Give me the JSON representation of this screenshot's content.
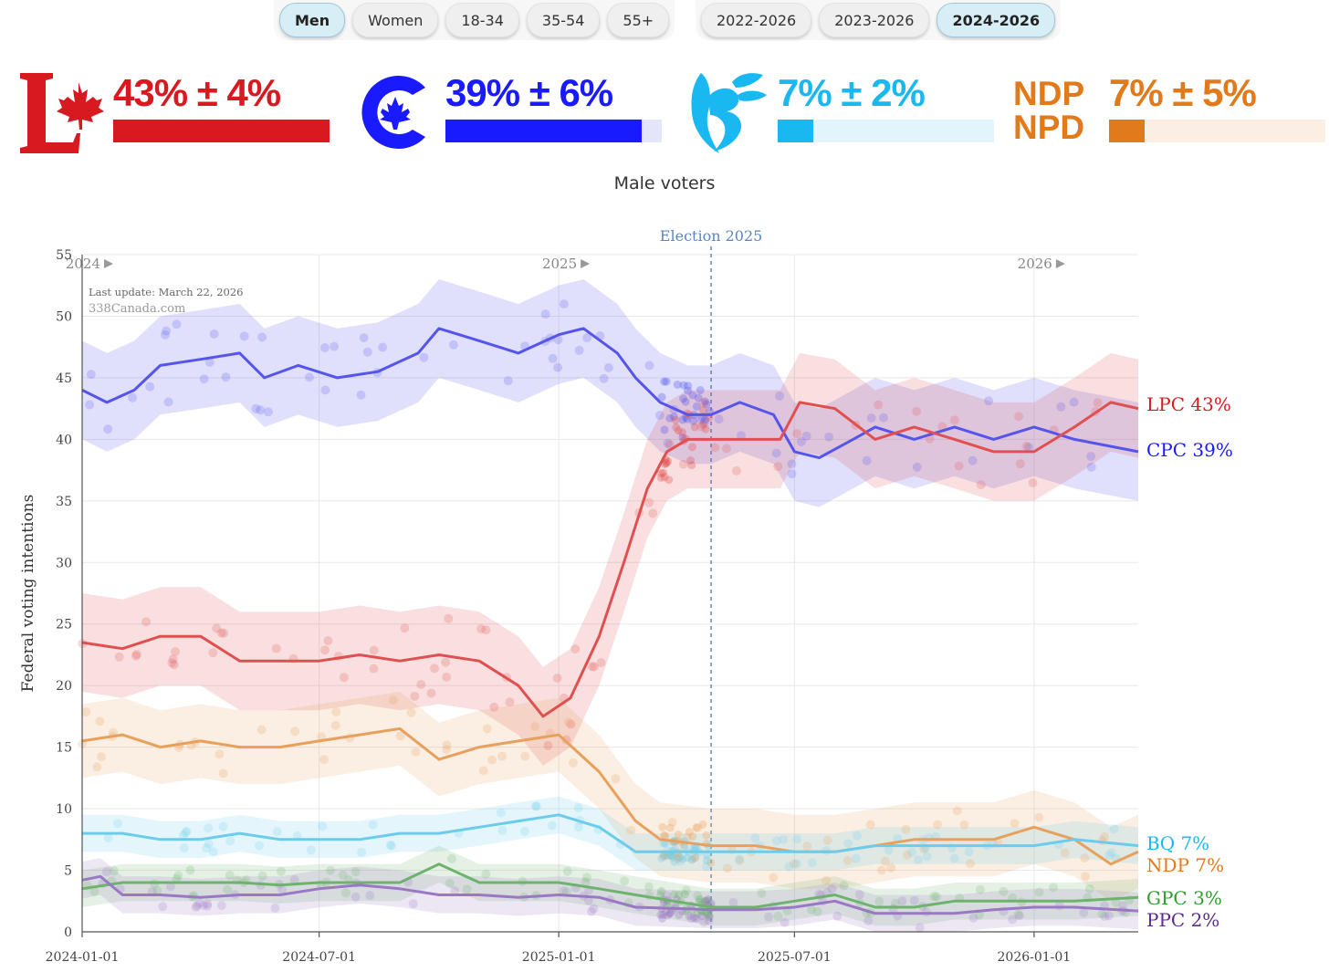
{
  "filters": {
    "demographics": [
      {
        "label": "Men",
        "active": true
      },
      {
        "label": "Women",
        "active": false
      },
      {
        "label": "18-34",
        "active": false
      },
      {
        "label": "35-54",
        "active": false
      },
      {
        "label": "55+",
        "active": false
      }
    ],
    "periods": [
      {
        "label": "2022-2026",
        "active": false
      },
      {
        "label": "2023-2026",
        "active": false
      },
      {
        "label": "2024-2026",
        "active": true
      }
    ]
  },
  "summary": [
    {
      "party": "LPC",
      "logo": "liberal-logo",
      "text": "43% ± 4%",
      "value": 43,
      "moe": 4,
      "color": "#d71920",
      "track": "#fbe3e3"
    },
    {
      "party": "CPC",
      "logo": "conservative-logo",
      "text": "39% ± 6%",
      "value": 39,
      "moe": 6,
      "color": "#1a1aff",
      "track": "#e4e4fb"
    },
    {
      "party": "BQ",
      "logo": "bloc-logo",
      "text": "7% ± 2%",
      "value": 7,
      "moe": 2,
      "color": "#19b8f0",
      "track": "#e3f5fc"
    },
    {
      "party": "NDP",
      "logo": "ndp-logo",
      "logo_text_1": "NDP",
      "logo_text_2": "NPD",
      "text": "7% ± 5%",
      "value": 7,
      "moe": 5,
      "color": "#e17a1b",
      "track": "#fbeee3"
    }
  ],
  "subtitle": "Male voters",
  "chart_data": {
    "type": "line",
    "title": "Male voters",
    "ylabel": "Federal voting intentions",
    "ylim": [
      0,
      55
    ],
    "yticks": [
      0,
      5,
      10,
      15,
      20,
      25,
      30,
      35,
      40,
      45,
      50,
      55
    ],
    "x_range": [
      "2024-01-01",
      "2026-03-22"
    ],
    "xticks": [
      "2024-01-01",
      "2024-07-01",
      "2025-01-01",
      "2025-07-01",
      "2026-01-01"
    ],
    "year_markers": [
      {
        "label": "2024",
        "date": "2024-01-01"
      },
      {
        "label": "2025",
        "date": "2025-01-01"
      },
      {
        "label": "2026",
        "date": "2026-01-01"
      }
    ],
    "annotations": {
      "election_label": "Election 2025",
      "election_date": "2025-04-28",
      "last_update": "Last update: March 22, 2026",
      "source": "338Canada.com"
    },
    "series": [
      {
        "name": "CPC",
        "end_label": "CPC 39%",
        "color": "#5555ee",
        "band": 4,
        "points": [
          [
            "2024-01-01",
            44
          ],
          [
            "2024-01-20",
            43
          ],
          [
            "2024-02-10",
            44
          ],
          [
            "2024-03-01",
            46
          ],
          [
            "2024-04-01",
            46.5
          ],
          [
            "2024-05-01",
            47
          ],
          [
            "2024-05-20",
            45
          ],
          [
            "2024-06-15",
            46
          ],
          [
            "2024-07-15",
            45
          ],
          [
            "2024-08-15",
            45.5
          ],
          [
            "2024-09-15",
            47
          ],
          [
            "2024-10-01",
            49
          ],
          [
            "2024-11-01",
            48
          ],
          [
            "2024-12-01",
            47
          ],
          [
            "2025-01-01",
            48.5
          ],
          [
            "2025-01-20",
            49
          ],
          [
            "2025-02-15",
            47
          ],
          [
            "2025-03-01",
            45
          ],
          [
            "2025-03-20",
            43
          ],
          [
            "2025-04-10",
            42
          ],
          [
            "2025-04-28",
            42
          ],
          [
            "2025-05-20",
            43
          ],
          [
            "2025-06-15",
            42
          ],
          [
            "2025-07-01",
            39
          ],
          [
            "2025-07-20",
            38.5
          ],
          [
            "2025-08-15",
            40
          ],
          [
            "2025-09-01",
            41
          ],
          [
            "2025-10-01",
            40
          ],
          [
            "2025-11-01",
            41
          ],
          [
            "2025-12-01",
            40
          ],
          [
            "2026-01-01",
            41
          ],
          [
            "2026-02-01",
            40
          ],
          [
            "2026-03-22",
            39
          ]
        ]
      },
      {
        "name": "LPC",
        "end_label": "LPC 43%",
        "color": "#e05050",
        "band": 4,
        "points": [
          [
            "2024-01-01",
            23.5
          ],
          [
            "2024-02-01",
            23
          ],
          [
            "2024-03-01",
            24
          ],
          [
            "2024-04-01",
            24
          ],
          [
            "2024-05-01",
            22
          ],
          [
            "2024-06-01",
            22
          ],
          [
            "2024-07-01",
            22
          ],
          [
            "2024-08-01",
            22.5
          ],
          [
            "2024-09-01",
            22
          ],
          [
            "2024-10-01",
            22.5
          ],
          [
            "2024-11-01",
            22
          ],
          [
            "2024-12-01",
            20
          ],
          [
            "2024-12-20",
            17.5
          ],
          [
            "2025-01-10",
            19
          ],
          [
            "2025-02-01",
            24
          ],
          [
            "2025-02-20",
            30
          ],
          [
            "2025-03-10",
            36
          ],
          [
            "2025-03-25",
            39
          ],
          [
            "2025-04-10",
            40
          ],
          [
            "2025-04-28",
            40
          ],
          [
            "2025-06-01",
            40
          ],
          [
            "2025-06-20",
            40
          ],
          [
            "2025-07-05",
            43
          ],
          [
            "2025-08-01",
            42.5
          ],
          [
            "2025-09-01",
            40
          ],
          [
            "2025-10-01",
            41
          ],
          [
            "2025-11-01",
            40
          ],
          [
            "2025-12-01",
            39
          ],
          [
            "2026-01-01",
            39
          ],
          [
            "2026-02-01",
            41
          ],
          [
            "2026-03-01",
            43
          ],
          [
            "2026-03-22",
            42.5
          ]
        ]
      },
      {
        "name": "NDP",
        "end_label": "NDP 7%",
        "color": "#e8a15c",
        "band": 3,
        "points": [
          [
            "2024-01-01",
            15.5
          ],
          [
            "2024-02-01",
            16
          ],
          [
            "2024-03-01",
            15
          ],
          [
            "2024-04-01",
            15.5
          ],
          [
            "2024-05-01",
            15
          ],
          [
            "2024-06-01",
            15
          ],
          [
            "2024-07-01",
            15.5
          ],
          [
            "2024-08-01",
            16
          ],
          [
            "2024-09-01",
            16.5
          ],
          [
            "2024-10-01",
            14
          ],
          [
            "2024-11-01",
            15
          ],
          [
            "2024-12-01",
            15.5
          ],
          [
            "2025-01-01",
            16
          ],
          [
            "2025-02-01",
            13
          ],
          [
            "2025-03-01",
            9
          ],
          [
            "2025-03-20",
            7.5
          ],
          [
            "2025-04-28",
            7
          ],
          [
            "2025-06-01",
            7
          ],
          [
            "2025-07-01",
            6.5
          ],
          [
            "2025-08-01",
            6.5
          ],
          [
            "2025-09-01",
            7
          ],
          [
            "2025-10-01",
            7.5
          ],
          [
            "2025-11-01",
            7.5
          ],
          [
            "2025-12-01",
            7.5
          ],
          [
            "2026-01-01",
            8.5
          ],
          [
            "2026-02-01",
            7.5
          ],
          [
            "2026-03-01",
            5.5
          ],
          [
            "2026-03-22",
            6.5
          ]
        ]
      },
      {
        "name": "BQ",
        "end_label": "BQ 7%",
        "color": "#6cccec",
        "band": 1.5,
        "points": [
          [
            "2024-01-01",
            8
          ],
          [
            "2024-02-01",
            8
          ],
          [
            "2024-03-01",
            7.5
          ],
          [
            "2024-04-01",
            7.5
          ],
          [
            "2024-05-01",
            8
          ],
          [
            "2024-06-01",
            7.5
          ],
          [
            "2024-07-01",
            7.5
          ],
          [
            "2024-08-01",
            7.5
          ],
          [
            "2024-09-01",
            8
          ],
          [
            "2024-10-01",
            8
          ],
          [
            "2024-11-01",
            8.5
          ],
          [
            "2024-12-01",
            9
          ],
          [
            "2025-01-01",
            9.5
          ],
          [
            "2025-02-01",
            8.5
          ],
          [
            "2025-03-01",
            6.5
          ],
          [
            "2025-04-28",
            6.5
          ],
          [
            "2025-06-01",
            6.5
          ],
          [
            "2025-07-01",
            6.5
          ],
          [
            "2025-08-01",
            6.5
          ],
          [
            "2025-09-01",
            7
          ],
          [
            "2025-10-01",
            7
          ],
          [
            "2025-11-01",
            7
          ],
          [
            "2025-12-01",
            7
          ],
          [
            "2026-01-01",
            7
          ],
          [
            "2026-02-01",
            7.5
          ],
          [
            "2026-03-22",
            7
          ]
        ]
      },
      {
        "name": "GPC",
        "end_label": "GPC 3%",
        "color": "#6db36d",
        "band": 1.5,
        "points": [
          [
            "2024-01-01",
            3.5
          ],
          [
            "2024-02-01",
            4
          ],
          [
            "2024-03-01",
            4
          ],
          [
            "2024-04-01",
            4
          ],
          [
            "2024-05-01",
            4
          ],
          [
            "2024-06-01",
            3.8
          ],
          [
            "2024-07-01",
            4
          ],
          [
            "2024-08-01",
            4
          ],
          [
            "2024-09-01",
            4
          ],
          [
            "2024-10-01",
            5.5
          ],
          [
            "2024-11-01",
            4
          ],
          [
            "2024-12-01",
            4
          ],
          [
            "2025-01-01",
            4
          ],
          [
            "2025-02-01",
            3.5
          ],
          [
            "2025-03-01",
            3
          ],
          [
            "2025-04-28",
            2
          ],
          [
            "2025-06-01",
            2
          ],
          [
            "2025-07-01",
            2.5
          ],
          [
            "2025-08-01",
            3
          ],
          [
            "2025-09-01",
            2
          ],
          [
            "2025-10-01",
            2
          ],
          [
            "2025-11-01",
            2.5
          ],
          [
            "2025-12-01",
            2.5
          ],
          [
            "2026-01-01",
            2.5
          ],
          [
            "2026-02-01",
            2.5
          ],
          [
            "2026-03-22",
            2.8
          ]
        ]
      },
      {
        "name": "PPC",
        "end_label": "PPC 2%",
        "color": "#9a78c4",
        "band": 1.5,
        "points": [
          [
            "2024-01-01",
            4.2
          ],
          [
            "2024-01-15",
            4.5
          ],
          [
            "2024-02-01",
            3
          ],
          [
            "2024-03-01",
            3
          ],
          [
            "2024-04-01",
            2.8
          ],
          [
            "2024-05-01",
            3
          ],
          [
            "2024-06-01",
            3
          ],
          [
            "2024-07-01",
            3.5
          ],
          [
            "2024-08-01",
            3.8
          ],
          [
            "2024-09-01",
            3.5
          ],
          [
            "2024-10-01",
            3
          ],
          [
            "2024-11-01",
            3
          ],
          [
            "2024-12-01",
            2.8
          ],
          [
            "2025-01-01",
            3
          ],
          [
            "2025-02-01",
            2.8
          ],
          [
            "2025-03-01",
            2
          ],
          [
            "2025-04-28",
            1.8
          ],
          [
            "2025-06-01",
            1.8
          ],
          [
            "2025-07-01",
            2
          ],
          [
            "2025-08-01",
            2.5
          ],
          [
            "2025-09-01",
            1.5
          ],
          [
            "2025-10-01",
            1.5
          ],
          [
            "2025-11-01",
            1.5
          ],
          [
            "2025-12-01",
            1.8
          ],
          [
            "2026-01-01",
            2
          ],
          [
            "2026-02-01",
            2
          ],
          [
            "2026-03-22",
            1.7
          ]
        ]
      }
    ]
  }
}
